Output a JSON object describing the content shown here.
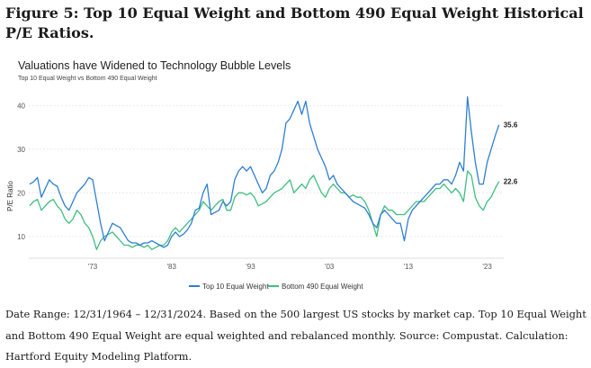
{
  "figure_title": "Figure 5: Top 10 Equal Weight and Bottom 490 Equal Weight Historical P/E Ratios.",
  "footer": "Date Range: 12/31/1964 – 12/31/2024. Based on the 500 largest US stocks by market cap. Top 10 Equal Weight and Bottom 490 Equal Weight are equal weighted and rebalanced monthly. Source: Compustat. Calculation: Hartford Equity Modeling Platform.",
  "colors": {
    "top10": "#2f7fd3",
    "bottom490": "#3fbf7f",
    "grid": "#e6e6e6",
    "axis_text": "#555555"
  },
  "chart_data": {
    "type": "line",
    "title": "Valuations have Widened to Technology Bubble Levels",
    "subtitle": "Top 10 Equal Weight vs Bottom 490 Equal Weight",
    "ylabel": "P/E Ratio",
    "xlabel": "",
    "xlim": [
      1964.9,
      2025.1
    ],
    "ylim": [
      5,
      44
    ],
    "yticks": [
      10,
      20,
      30,
      40
    ],
    "xticks": [
      {
        "value": 1973,
        "label": "'73"
      },
      {
        "value": 1983,
        "label": "'83"
      },
      {
        "value": 1993,
        "label": "'93"
      },
      {
        "value": 2003,
        "label": "'03"
      },
      {
        "value": 2013,
        "label": "'13"
      },
      {
        "value": 2023,
        "label": "'23"
      }
    ],
    "grid": "horizontal",
    "legend_position": "bottom",
    "end_labels": [
      "35.6",
      "22.6"
    ],
    "series": [
      {
        "name": "Top 10 Equal Weight",
        "points": [
          [
            1965,
            22
          ],
          [
            1965.5,
            22.5
          ],
          [
            1966,
            23.5
          ],
          [
            1966.5,
            19
          ],
          [
            1967,
            21
          ],
          [
            1967.5,
            23
          ],
          [
            1968,
            22
          ],
          [
            1968.5,
            21.5
          ],
          [
            1969,
            19
          ],
          [
            1969.5,
            17
          ],
          [
            1970,
            16
          ],
          [
            1970.5,
            18
          ],
          [
            1971,
            20
          ],
          [
            1971.5,
            21
          ],
          [
            1972,
            22
          ],
          [
            1972.5,
            23.5
          ],
          [
            1973,
            23
          ],
          [
            1973.5,
            18
          ],
          [
            1974,
            13
          ],
          [
            1974.5,
            9
          ],
          [
            1975,
            11
          ],
          [
            1975.5,
            13
          ],
          [
            1976,
            12.5
          ],
          [
            1976.5,
            12
          ],
          [
            1977,
            10.5
          ],
          [
            1977.5,
            9
          ],
          [
            1978,
            8.5
          ],
          [
            1978.5,
            8.5
          ],
          [
            1979,
            8
          ],
          [
            1979.5,
            8.5
          ],
          [
            1980,
            8.5
          ],
          [
            1980.5,
            9
          ],
          [
            1981,
            8.5
          ],
          [
            1981.5,
            8
          ],
          [
            1982,
            7.5
          ],
          [
            1982.5,
            8
          ],
          [
            1983,
            10
          ],
          [
            1983.5,
            11
          ],
          [
            1984,
            10
          ],
          [
            1984.5,
            10.5
          ],
          [
            1985,
            11.5
          ],
          [
            1985.5,
            13
          ],
          [
            1986,
            16
          ],
          [
            1986.5,
            16.5
          ],
          [
            1987,
            20
          ],
          [
            1987.5,
            22
          ],
          [
            1988,
            15
          ],
          [
            1988.5,
            15.5
          ],
          [
            1989,
            16
          ],
          [
            1989.5,
            18
          ],
          [
            1990,
            17
          ],
          [
            1990.5,
            18
          ],
          [
            1991,
            23
          ],
          [
            1991.5,
            25
          ],
          [
            1992,
            26
          ],
          [
            1992.5,
            25
          ],
          [
            1993,
            26
          ],
          [
            1993.5,
            24
          ],
          [
            1994,
            22
          ],
          [
            1994.5,
            20
          ],
          [
            1995,
            21
          ],
          [
            1995.5,
            24
          ],
          [
            1996,
            25
          ],
          [
            1996.5,
            27
          ],
          [
            1997,
            30
          ],
          [
            1997.5,
            36
          ],
          [
            1998,
            37
          ],
          [
            1998.5,
            39
          ],
          [
            1999,
            41
          ],
          [
            1999.5,
            38
          ],
          [
            2000,
            41
          ],
          [
            2000.5,
            36
          ],
          [
            2001,
            33
          ],
          [
            2001.5,
            30
          ],
          [
            2002,
            28
          ],
          [
            2002.5,
            26
          ],
          [
            2003,
            23
          ],
          [
            2003.5,
            24
          ],
          [
            2004,
            22
          ],
          [
            2004.5,
            21
          ],
          [
            2005,
            20
          ],
          [
            2005.5,
            19
          ],
          [
            2006,
            18
          ],
          [
            2006.5,
            17.5
          ],
          [
            2007,
            17
          ],
          [
            2007.5,
            16.5
          ],
          [
            2008,
            15
          ],
          [
            2008.5,
            13
          ],
          [
            2009,
            12
          ],
          [
            2009.5,
            15
          ],
          [
            2010,
            16
          ],
          [
            2010.5,
            15
          ],
          [
            2011,
            14
          ],
          [
            2011.5,
            13
          ],
          [
            2012,
            13
          ],
          [
            2012.5,
            9
          ],
          [
            2013,
            14
          ],
          [
            2013.5,
            16
          ],
          [
            2014,
            17
          ],
          [
            2014.5,
            18
          ],
          [
            2015,
            19
          ],
          [
            2015.5,
            20
          ],
          [
            2016,
            21
          ],
          [
            2016.5,
            22
          ],
          [
            2017,
            22
          ],
          [
            2017.5,
            23
          ],
          [
            2018,
            23
          ],
          [
            2018.5,
            22
          ],
          [
            2019,
            24
          ],
          [
            2019.5,
            27
          ],
          [
            2020,
            25
          ],
          [
            2020.5,
            42
          ],
          [
            2021,
            34
          ],
          [
            2021.5,
            27
          ],
          [
            2022,
            22
          ],
          [
            2022.5,
            22
          ],
          [
            2023,
            27
          ],
          [
            2023.5,
            30
          ],
          [
            2024,
            33
          ],
          [
            2024.5,
            35.6
          ]
        ]
      },
      {
        "name": "Bottom 490 Equal Weight",
        "points": [
          [
            1965,
            17
          ],
          [
            1965.5,
            18
          ],
          [
            1966,
            18.5
          ],
          [
            1966.5,
            16
          ],
          [
            1967,
            17
          ],
          [
            1967.5,
            18
          ],
          [
            1968,
            18.5
          ],
          [
            1968.5,
            17
          ],
          [
            1969,
            16
          ],
          [
            1969.5,
            14
          ],
          [
            1970,
            13
          ],
          [
            1970.5,
            14
          ],
          [
            1971,
            16
          ],
          [
            1971.5,
            15
          ],
          [
            1972,
            13
          ],
          [
            1972.5,
            12
          ],
          [
            1973,
            10
          ],
          [
            1973.5,
            7
          ],
          [
            1974,
            9
          ],
          [
            1974.5,
            10
          ],
          [
            1975,
            10.5
          ],
          [
            1975.5,
            11
          ],
          [
            1976,
            10
          ],
          [
            1976.5,
            9
          ],
          [
            1977,
            8
          ],
          [
            1977.5,
            8
          ],
          [
            1978,
            7.5
          ],
          [
            1978.5,
            8
          ],
          [
            1979,
            8
          ],
          [
            1979.5,
            7.5
          ],
          [
            1980,
            8
          ],
          [
            1980.5,
            7
          ],
          [
            1981,
            7.5
          ],
          [
            1981.5,
            8
          ],
          [
            1982,
            8
          ],
          [
            1982.5,
            9
          ],
          [
            1983,
            11
          ],
          [
            1983.5,
            12
          ],
          [
            1984,
            11
          ],
          [
            1984.5,
            12
          ],
          [
            1985,
            13
          ],
          [
            1985.5,
            14
          ],
          [
            1986,
            15
          ],
          [
            1986.5,
            16
          ],
          [
            1987,
            18
          ],
          [
            1987.5,
            17
          ],
          [
            1988,
            16
          ],
          [
            1988.5,
            17
          ],
          [
            1989,
            18
          ],
          [
            1989.5,
            18.5
          ],
          [
            1990,
            16
          ],
          [
            1990.5,
            16
          ],
          [
            1991,
            19
          ],
          [
            1991.5,
            20
          ],
          [
            1992,
            20
          ],
          [
            1992.5,
            19.5
          ],
          [
            1993,
            20
          ],
          [
            1993.5,
            19
          ],
          [
            1994,
            17
          ],
          [
            1994.5,
            17.5
          ],
          [
            1995,
            18
          ],
          [
            1995.5,
            19
          ],
          [
            1996,
            20
          ],
          [
            1996.5,
            20.5
          ],
          [
            1997,
            21
          ],
          [
            1997.5,
            22
          ],
          [
            1998,
            23
          ],
          [
            1998.5,
            20
          ],
          [
            1999,
            21
          ],
          [
            1999.5,
            22
          ],
          [
            2000,
            21
          ],
          [
            2000.5,
            23
          ],
          [
            2001,
            24
          ],
          [
            2001.5,
            22
          ],
          [
            2002,
            20
          ],
          [
            2002.5,
            19
          ],
          [
            2003,
            21
          ],
          [
            2003.5,
            22
          ],
          [
            2004,
            21
          ],
          [
            2004.5,
            20
          ],
          [
            2005,
            20
          ],
          [
            2005.5,
            19
          ],
          [
            2006,
            19.5
          ],
          [
            2006.5,
            19
          ],
          [
            2007,
            19
          ],
          [
            2007.5,
            18
          ],
          [
            2008,
            16
          ],
          [
            2008.5,
            13
          ],
          [
            2009,
            10
          ],
          [
            2009.5,
            15
          ],
          [
            2010,
            17
          ],
          [
            2010.5,
            16
          ],
          [
            2011,
            16
          ],
          [
            2011.5,
            15
          ],
          [
            2012,
            15
          ],
          [
            2012.5,
            15
          ],
          [
            2013,
            16
          ],
          [
            2013.5,
            17
          ],
          [
            2014,
            18
          ],
          [
            2014.5,
            18
          ],
          [
            2015,
            18
          ],
          [
            2015.5,
            19
          ],
          [
            2016,
            20
          ],
          [
            2016.5,
            21
          ],
          [
            2017,
            21
          ],
          [
            2017.5,
            22
          ],
          [
            2018,
            21
          ],
          [
            2018.5,
            20
          ],
          [
            2019,
            21
          ],
          [
            2019.5,
            20
          ],
          [
            2020,
            18
          ],
          [
            2020.5,
            25
          ],
          [
            2021,
            24
          ],
          [
            2021.5,
            19
          ],
          [
            2022,
            17
          ],
          [
            2022.5,
            16
          ],
          [
            2023,
            18
          ],
          [
            2023.5,
            19
          ],
          [
            2024,
            21
          ],
          [
            2024.5,
            22.6
          ]
        ]
      }
    ]
  }
}
